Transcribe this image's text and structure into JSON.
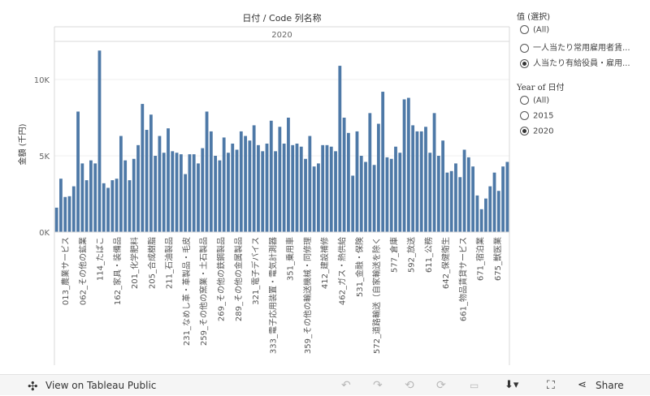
{
  "chart_data": {
    "type": "bar",
    "title": "日付 / Code 列名称",
    "panel_label": "2020",
    "ylabel": "金額 (千円)",
    "ylim": [
      0,
      12500
    ],
    "yticks": [
      0,
      5000,
      10000
    ],
    "ytick_labels": [
      "0K",
      "5K",
      "10K"
    ],
    "color": "#4e79a7",
    "category_labels": [
      "013_農業サービス",
      "062_その他の鉱業",
      "114_たばこ",
      "162_家具・装備品",
      "201_化学肥料",
      "205_合成樹脂",
      "211_石油製品",
      "231_なめし革・革製品・毛皮",
      "259_その他の窯業・土石製品",
      "269_その他の鉄鋼製品",
      "289_その他の金属製品",
      "321_電子デバイス",
      "333_電子応用装置・電気計測器",
      "351_乗用車",
      "359_その他の輸送機械・同修理",
      "412_建設補修",
      "462_ガス・熱供給",
      "531_金融・保険",
      "572_道路輸送（自家輸送を除く",
      "577_倉庫",
      "592_放送",
      "611_公務",
      "642_保健衛生",
      "661_物品賃貸サービス",
      "671_宿泊業",
      "675_獣医業"
    ],
    "values": [
      1600,
      3500,
      2300,
      2350,
      3000,
      7900,
      4500,
      3400,
      4700,
      4500,
      11900,
      3200,
      2900,
      3400,
      3500,
      6300,
      4700,
      3400,
      4800,
      5700,
      8400,
      6700,
      7700,
      5000,
      6300,
      5200,
      6800,
      5300,
      5200,
      5100,
      3800,
      5100,
      5100,
      4500,
      5500,
      7900,
      6600,
      5000,
      4700,
      6200,
      5200,
      5800,
      5400,
      6600,
      6300,
      6000,
      7000,
      5700,
      5300,
      5800,
      7300,
      5300,
      6900,
      5800,
      7500,
      5700,
      5800,
      5600,
      4800,
      6300,
      4300,
      4500,
      5700,
      5700,
      5600,
      5300,
      10900,
      7500,
      6500,
      3700,
      6600,
      5000,
      4600,
      7800,
      4400,
      7100,
      9200,
      4900,
      4800,
      5600,
      5200,
      8700,
      8800,
      7000,
      6600,
      6600,
      6900,
      5200,
      7800,
      5000,
      6000,
      3900,
      4000,
      4500,
      3600,
      5400,
      4900,
      4300,
      2400,
      1500,
      2200,
      3000,
      3900,
      2700,
      4300,
      4600
    ]
  },
  "legend_value": {
    "title": "值 (選択)",
    "options": [
      "(All)",
      "一人当たり常用雇用者賃...",
      "人当たり有給役員・雇用..."
    ],
    "selected": 2
  },
  "legend_year": {
    "title": "Year of 日付",
    "options": [
      "(All)",
      "2015",
      "2020"
    ],
    "selected": 2
  },
  "toolbar": {
    "view_label": "View on Tableau Public",
    "share_label": "Share"
  }
}
